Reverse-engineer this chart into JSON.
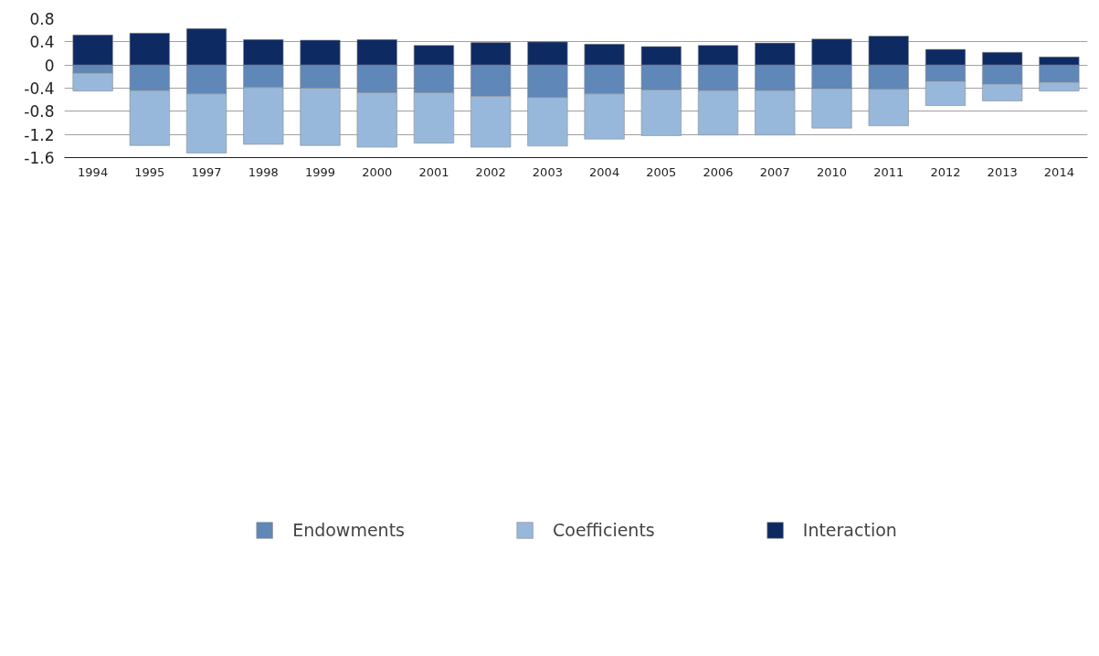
{
  "chart_data": {
    "type": "bar",
    "stacked": true,
    "categories": [
      "1994",
      "1995",
      "1997",
      "1998",
      "1999",
      "2000",
      "2001",
      "2002",
      "2003",
      "2004",
      "2005",
      "2006",
      "2007",
      "2010",
      "2011",
      "2012",
      "2013",
      "2014"
    ],
    "series": [
      {
        "name": "Endowments",
        "color": "#5f87b8",
        "values": [
          -0.14,
          -0.44,
          -0.5,
          -0.39,
          -0.4,
          -0.48,
          -0.48,
          -0.54,
          -0.56,
          -0.5,
          -0.43,
          -0.44,
          -0.44,
          -0.41,
          -0.42,
          -0.28,
          -0.33,
          -0.3
        ]
      },
      {
        "name": "Coefficients",
        "color": "#97b8db",
        "values": [
          -0.31,
          -0.95,
          -1.02,
          -0.98,
          -0.99,
          -0.94,
          -0.87,
          -0.88,
          -0.84,
          -0.78,
          -0.79,
          -0.77,
          -0.77,
          -0.68,
          -0.63,
          -0.42,
          -0.29,
          -0.15
        ]
      },
      {
        "name": "Interaction",
        "color": "#0e2a63",
        "values": [
          0.52,
          0.55,
          0.63,
          0.44,
          0.43,
          0.44,
          0.34,
          0.39,
          0.4,
          0.36,
          0.32,
          0.34,
          0.38,
          0.45,
          0.5,
          0.27,
          0.22,
          0.14
        ]
      }
    ],
    "ylim": [
      -1.6,
      0.8
    ],
    "yticks": [
      -1.6,
      -1.2,
      -0.8,
      -0.4,
      0,
      0.4,
      0.8
    ],
    "grid": "y",
    "legend": "bottom"
  }
}
